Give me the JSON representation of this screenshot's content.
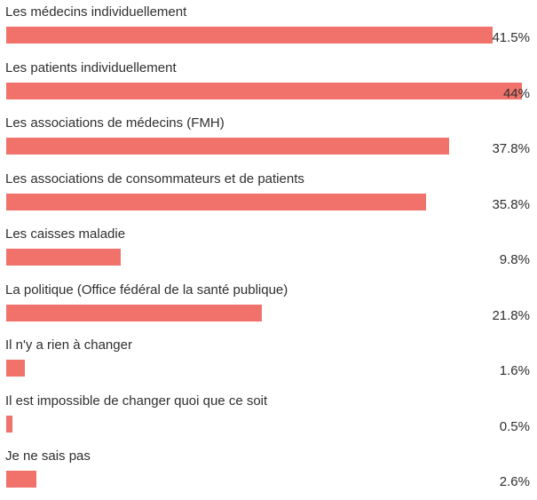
{
  "chart_data": {
    "type": "bar",
    "orientation": "horizontal",
    "bar_color": "#f0726b",
    "categories": [
      "Les médecins individuellement",
      "Les patients individuellement",
      "Les associations de médecins (FMH)",
      "Les associations de consommateurs et de patients",
      "Les caisses maladie",
      "La politique (Office fédéral de la santé publique)",
      "Il n'y a rien à changer",
      "Il est impossible de changer quoi que ce soit",
      "Je ne sais pas"
    ],
    "values": [
      41.5,
      44,
      37.8,
      35.8,
      9.8,
      21.8,
      1.6,
      0.5,
      2.6
    ],
    "value_labels": [
      "41.5%",
      "44%",
      "37.8%",
      "35.8%",
      "9.8%",
      "21.8%",
      "1.6%",
      "0.5%",
      "2.6%"
    ],
    "xlim": [
      0,
      44
    ],
    "grid": false,
    "legend": "none"
  }
}
